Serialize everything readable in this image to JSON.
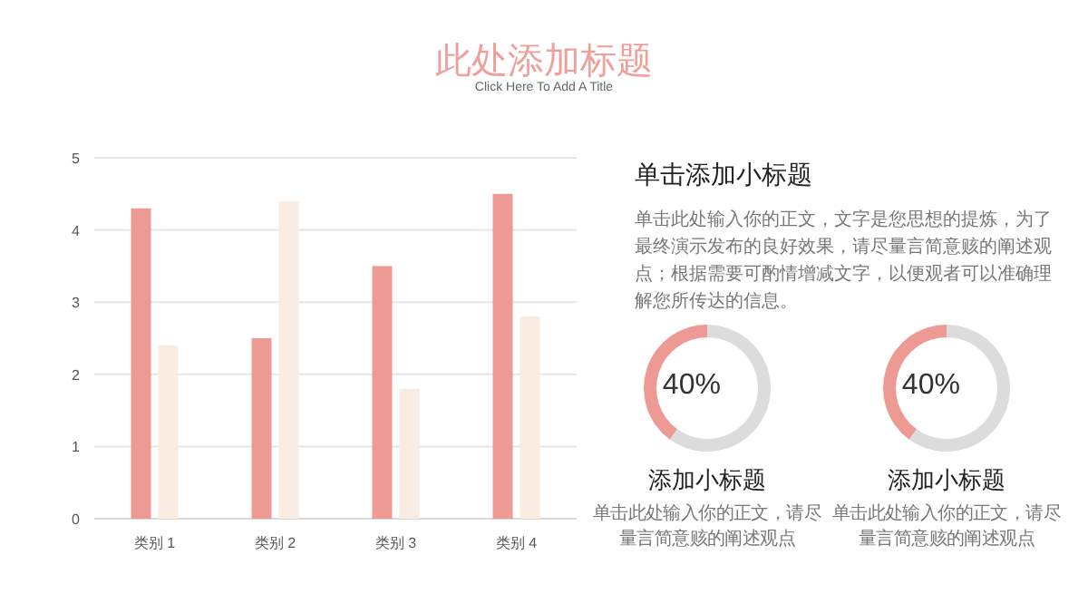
{
  "chart_data": [
    {
      "type": "bar",
      "title": "此处添加标题",
      "subtitle": "Click Here To Add A Title",
      "categories": [
        "类别 1",
        "类别 2",
        "类别 3",
        "类别 4"
      ],
      "series": [
        {
          "color": "#ee9a94",
          "values": [
            4.3,
            2.5,
            3.5,
            4.5
          ]
        },
        {
          "color": "#f8ece3",
          "values": [
            2.4,
            4.4,
            1.8,
            2.8
          ]
        }
      ],
      "ylim": [
        0,
        5
      ],
      "yticks": [
        0,
        1,
        2,
        3,
        4,
        5
      ],
      "grid": "y"
    },
    {
      "type": "other",
      "title": "单击添加小标题",
      "annotations": [
        "单击此处输入你的正文，文字是您思想的提炼，为了最终演示发布的良好效果，请尽量言简意赅的阐述观点；根据需要可酌情增减文字，以便观者可以准确理解您所传达的信息。"
      ]
    },
    {
      "type": "donut",
      "title": "添加小标题",
      "categories": [
        null,
        null
      ],
      "values": [
        40,
        60
      ],
      "colors": [
        "#ee9a94",
        "#dcdcdc"
      ],
      "value_labels": [
        "40%",
        null
      ],
      "annotations": [
        "单击此处输入你的正文，请尽量言简意赅的阐述观点"
      ]
    },
    {
      "type": "donut",
      "title": "添加小标题",
      "categories": [
        null,
        null
      ],
      "values": [
        40,
        60
      ],
      "colors": [
        "#ee9a94",
        "#dcdcdc"
      ],
      "value_labels": [
        "40%",
        null
      ],
      "annotations": [
        "单击此处输入你的正文，请尽量言简意赅的阐述观点"
      ]
    }
  ]
}
